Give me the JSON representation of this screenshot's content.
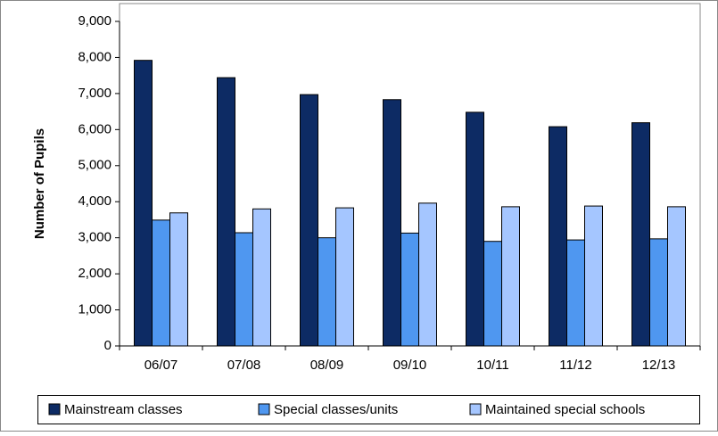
{
  "chart_data": {
    "type": "bar",
    "y_label": "Number of Pupils",
    "categories": [
      "06/07",
      "07/08",
      "08/09",
      "09/10",
      "10/11",
      "11/12",
      "12/13"
    ],
    "series": [
      {
        "name": "Mainstream classes",
        "color": "#0d2b64",
        "values": [
          7920,
          7440,
          6970,
          6830,
          6480,
          6080,
          6190
        ]
      },
      {
        "name": "Special classes/units",
        "color": "#4f97f0",
        "values": [
          3490,
          3140,
          3000,
          3130,
          2900,
          2940,
          2970
        ]
      },
      {
        "name": "Maintained special schools",
        "color": "#a5c6ff",
        "values": [
          3690,
          3800,
          3830,
          3960,
          3860,
          3880,
          3860
        ]
      }
    ],
    "ylim": [
      0,
      9000
    ],
    "yticks": [
      0,
      {
        "value": 1000,
        "label": "1,000"
      },
      {
        "value": 2000,
        "label": "2,000"
      },
      {
        "value": 3000,
        "label": "3,000"
      },
      {
        "value": 4000,
        "label": "4,000"
      },
      {
        "value": 5000,
        "label": "5,000"
      },
      {
        "value": 6000,
        "label": "6,000"
      },
      {
        "value": 7000,
        "label": "7,000"
      },
      {
        "value": 8000,
        "label": "8,000"
      },
      {
        "value": 9000,
        "label": "9,000"
      }
    ],
    "grid": false,
    "legend": "bottom"
  }
}
